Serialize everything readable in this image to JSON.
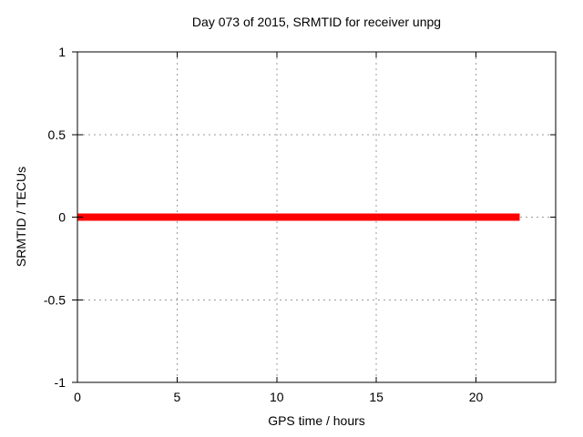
{
  "chart_data": {
    "type": "line",
    "title": "Day 073 of 2015, SRMTID for receiver unpg",
    "xlabel": "GPS time / hours",
    "ylabel": "SRMTID / TECUs",
    "xlim": [
      0,
      24
    ],
    "ylim": [
      -1,
      1
    ],
    "xticks": {
      "values": [
        0,
        5,
        10,
        15,
        20
      ],
      "labels": [
        "0",
        "5",
        "10",
        "15",
        "20"
      ]
    },
    "yticks": {
      "values": [
        -1,
        -0.5,
        0,
        0.5,
        1
      ],
      "labels": [
        "-1",
        "-0.5",
        "0",
        "0.5",
        "1"
      ]
    },
    "grid": true,
    "grid_color": "#9b9b9b",
    "grid_dash": "2,4",
    "border_color": "#000000",
    "background_color": "#ffffff",
    "series": [
      {
        "name": "SRMTID",
        "color": "#ff0000",
        "linewidth": 8,
        "x": [
          0,
          22.2
        ],
        "y": [
          0,
          0
        ]
      }
    ],
    "layout": {
      "plot_left": 85,
      "plot_top": 57,
      "plot_right": 610,
      "plot_bottom": 420,
      "tick_len_in": 6,
      "tick_len_out": 6,
      "legend": "none"
    }
  }
}
